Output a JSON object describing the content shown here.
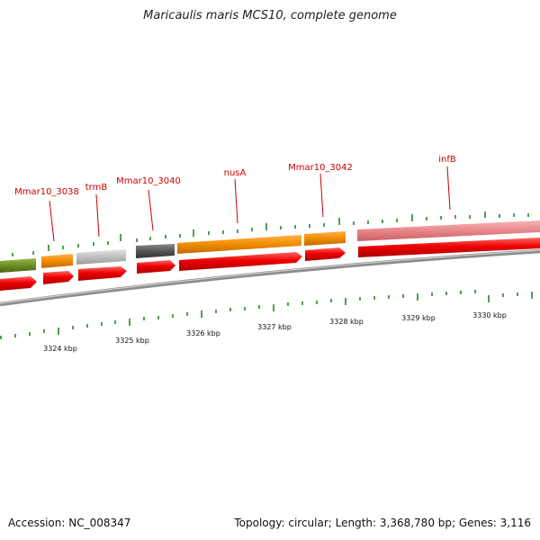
{
  "title": "Maricaulis maris MCS10, complete genome",
  "footer": {
    "accession": "Accession: NC_008347",
    "stats": "Topology: circular; Length: 3,368,780 bp; Genes: 3,116"
  },
  "colors": {
    "olive": "#6b8e23",
    "orange": "#f08c00",
    "light_gray": "#c0c0c0",
    "dark_gray": "#555555",
    "pink": "#e8868a",
    "red": "#ee0000",
    "tick_green": "#1a7a1a",
    "label_red": "#cc0000",
    "backbone": "#8c8c8c"
  },
  "gene_labels": [
    "Mmar10_3038",
    "trmB",
    "Mmar10_3040",
    "nusA",
    "Mmar10_3042",
    "infB"
  ],
  "scale_labels": [
    "3324 kbp",
    "3325 kbp",
    "3326 kbp",
    "3327 kbp",
    "3328 kbp",
    "3329 kbp",
    "3330 kbp"
  ]
}
